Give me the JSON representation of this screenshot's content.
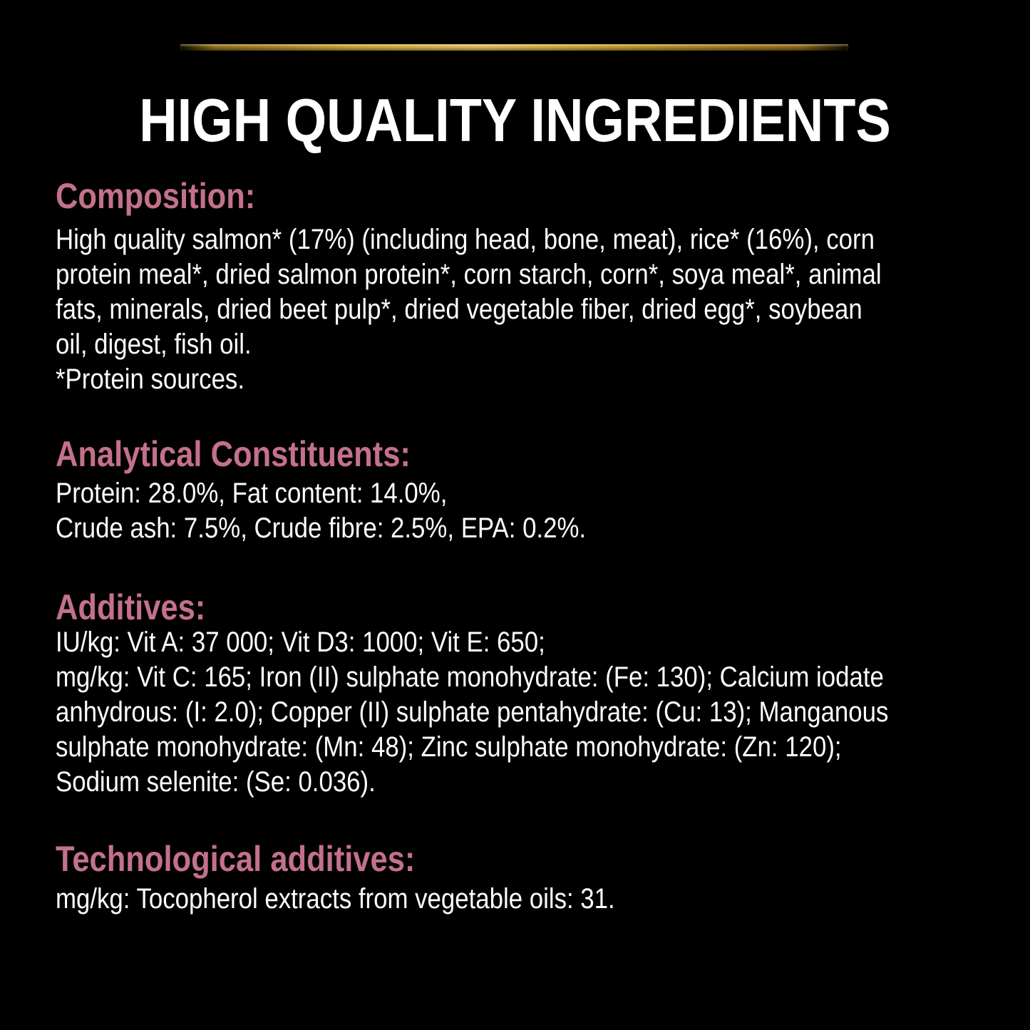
{
  "page": {
    "background_color": "#000000",
    "accent_gold_color": "#c9a43c",
    "section_heading_color": "#c4718a",
    "body_text_color": "#fdfdfd"
  },
  "title": "HIGH QUALITY INGREDIENTS",
  "sections": [
    {
      "id": "composition",
      "heading": "Composition:",
      "lines": [
        "High quality salmon* (17%) (including head, bone, meat), rice* (16%), corn",
        "protein meal*, dried salmon protein*, corn starch, corn*, soya meal*, animal",
        "fats, minerals, dried beet pulp*, dried vegetable fiber, dried egg*, soybean",
        "oil, digest, fish oil.",
        "*Protein sources."
      ]
    },
    {
      "id": "analytical-constituents",
      "heading": "Analytical Constituents:",
      "lines": [
        "Protein: 28.0%, Fat content: 14.0%,",
        "Crude ash: 7.5%, Crude fibre: 2.5%, EPA: 0.2%."
      ]
    },
    {
      "id": "additives",
      "heading": "Additives:",
      "lines": [
        "IU/kg: Vit A: 37 000; Vit D3: 1000; Vit E: 650;",
        "mg/kg: Vit C: 165; Iron (II) sulphate monohydrate: (Fe: 130); Calcium iodate",
        "anhydrous: (I: 2.0); Copper (II) sulphate pentahydrate: (Cu: 13); Manganous",
        "sulphate monohydrate: (Mn: 48); Zinc sulphate monohydrate: (Zn: 120);",
        "Sodium selenite: (Se: 0.036)."
      ]
    },
    {
      "id": "technological-additives",
      "heading": "Technological additives:",
      "lines": [
        "mg/kg: Tocopherol extracts from vegetable oils: 31."
      ]
    }
  ]
}
